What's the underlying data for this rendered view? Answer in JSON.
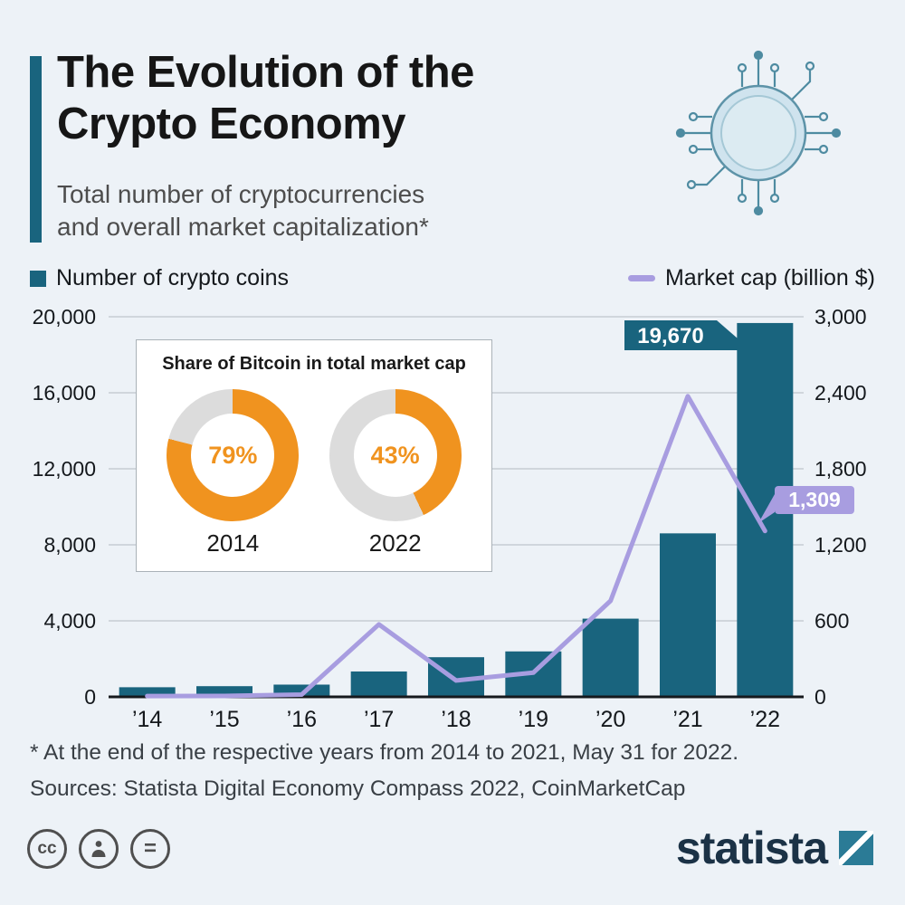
{
  "header": {
    "title_line1": "The Evolution of the",
    "title_line2": "Crypto Economy",
    "subtitle_line1": "Total number of cryptocurrencies",
    "subtitle_line2": "and overall market capitalization*"
  },
  "legend": {
    "bars_label": "Number of crypto coins",
    "line_label": "Market cap (billion $)"
  },
  "chart_data": {
    "type": "bar+line",
    "categories": [
      "’14",
      "’15",
      "’16",
      "’17",
      "’18",
      "’19",
      "’20",
      "’21",
      "’22"
    ],
    "series": [
      {
        "name": "Number of crypto coins",
        "type": "bar",
        "axis": "left",
        "values": [
          506,
          562,
          644,
          1335,
          2086,
          2391,
          4115,
          8603,
          19670
        ]
      },
      {
        "name": "Market cap (billion $)",
        "type": "line",
        "axis": "right",
        "values": [
          6,
          7,
          18,
          572,
          129,
          191,
          758,
          2373,
          1309
        ]
      }
    ],
    "left_axis": {
      "ticks": [
        0,
        4000,
        8000,
        12000,
        16000,
        20000
      ],
      "labels": [
        "0",
        "4,000",
        "8,000",
        "12,000",
        "16,000",
        "20,000"
      ],
      "max": 20000
    },
    "right_axis": {
      "ticks": [
        0,
        600,
        1200,
        1800,
        2400,
        3000
      ],
      "labels": [
        "0",
        "600",
        "1,200",
        "1,800",
        "2,400",
        "3,000"
      ],
      "max": 3000
    },
    "annotations": [
      {
        "target": "2022 number of crypto coins",
        "label": "19,670",
        "color": "#19647e"
      },
      {
        "target": "2022 market cap",
        "label": "1,309",
        "color": "#a89de0"
      }
    ],
    "grid": "horizontal",
    "legend_position": "top"
  },
  "inset": {
    "title": "Share of Bitcoin in total market cap",
    "donuts": [
      {
        "percent": 79,
        "label_value": "79%",
        "year": "2014"
      },
      {
        "percent": 43,
        "label_value": "43%",
        "year": "2022"
      }
    ]
  },
  "footnote": "* At the end of the respective years from 2014 to 2021, May 31 for 2022.",
  "source": "Sources: Statista Digital Economy Compass 2022, CoinMarketCap",
  "branding": {
    "logo_text": "statista"
  },
  "license": {
    "cc_glyph": "cc",
    "equals_glyph": "="
  },
  "colors": {
    "teal": "#19647e",
    "purple": "#a89de0",
    "orange": "#f0931f",
    "donut_gray": "#dcdcdc",
    "background": "#edf2f7"
  }
}
